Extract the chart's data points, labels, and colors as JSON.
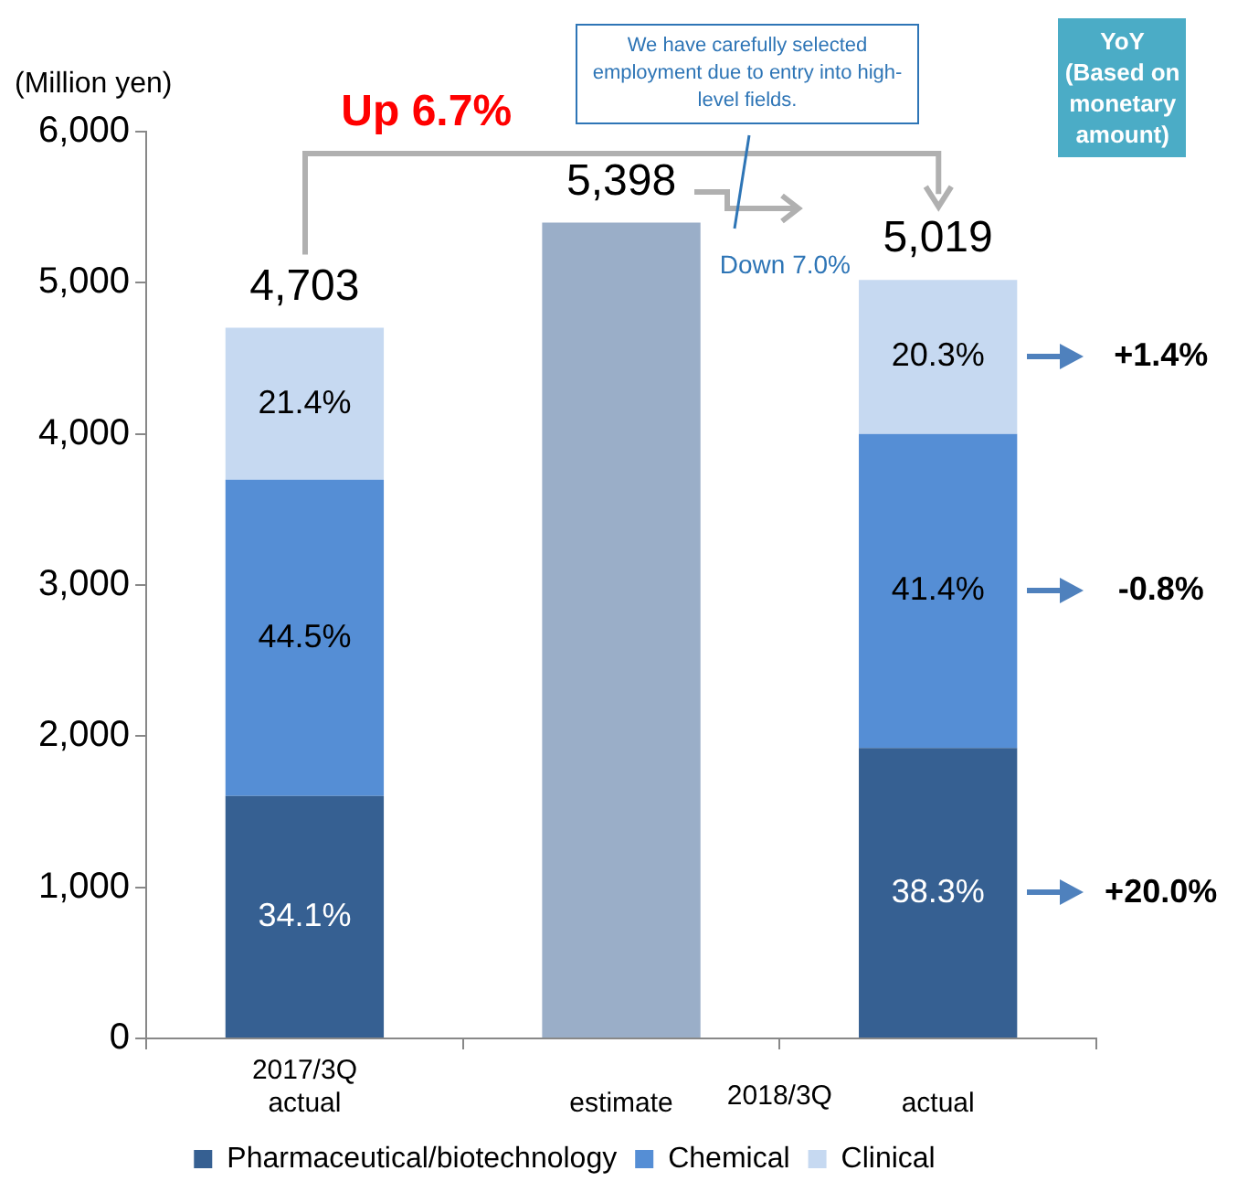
{
  "chart_data": {
    "type": "bar",
    "stacked": true,
    "ylabel": "(Million yen)",
    "categories": [
      "2017/3Q\nactual",
      "estimate",
      "actual"
    ],
    "series": [
      {
        "name": "Pharmaceutical/biotechnology",
        "color": "#366092",
        "values": [
          1604,
          null,
          1922
        ]
      },
      {
        "name": "Chemical",
        "color": "#558ed5",
        "values": [
          2093,
          null,
          2078
        ]
      },
      {
        "name": "Clinical",
        "color": "#c6d9f1",
        "values": [
          1006,
          null,
          1019
        ]
      },
      {
        "color": "#9aaec8",
        "values": [
          null,
          5398,
          null
        ]
      }
    ],
    "totals": [
      "4,703",
      "5,398",
      "5,019"
    ],
    "ylim": [
      0,
      6000
    ],
    "yticks": [
      {
        "value": 0,
        "label": "0"
      },
      {
        "value": 1000,
        "label": "1,000"
      },
      {
        "value": 2000,
        "label": "2,000"
      },
      {
        "value": 3000,
        "label": "3,000"
      },
      {
        "value": 4000,
        "label": "4,000"
      },
      {
        "value": 5000,
        "label": "5,000"
      },
      {
        "value": 6000,
        "label": "6,000"
      }
    ],
    "grid": false,
    "legend": "bottom",
    "annotations": [
      "Up 6.7%",
      "We have carefully selected employment due to entry into high-level fields.",
      "Down 7.0%",
      "YoY (Based on monetary amount)",
      "+1.4%",
      "-0.8%",
      "+20.0%",
      "2018/3Q",
      "34.1%",
      "44.5%",
      "21.4%",
      "38.3%",
      "41.4%",
      "20.3%"
    ]
  }
}
